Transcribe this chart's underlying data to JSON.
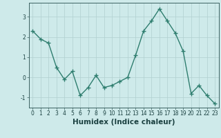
{
  "x": [
    0,
    1,
    2,
    3,
    4,
    5,
    6,
    7,
    8,
    9,
    10,
    11,
    12,
    13,
    14,
    15,
    16,
    17,
    18,
    19,
    20,
    21,
    22,
    23
  ],
  "y": [
    2.3,
    1.9,
    1.7,
    0.5,
    -0.1,
    0.3,
    -0.9,
    -0.5,
    0.1,
    -0.5,
    -0.4,
    -0.2,
    0.0,
    1.1,
    2.3,
    2.8,
    3.4,
    2.8,
    2.2,
    1.3,
    -0.8,
    -0.4,
    -0.9,
    -1.3
  ],
  "line_color": "#2e7d6e",
  "marker": "+",
  "marker_size": 4,
  "marker_linewidth": 1.0,
  "line_width": 1.0,
  "bg_color": "#ceeaea",
  "grid_color": "#b0d0d0",
  "xlabel": "Humidex (Indice chaleur)",
  "xlim": [
    -0.5,
    23.5
  ],
  "ylim": [
    -1.5,
    3.7
  ],
  "yticks": [
    -1,
    0,
    1,
    2,
    3
  ],
  "xticks": [
    0,
    1,
    2,
    3,
    4,
    5,
    6,
    7,
    8,
    9,
    10,
    11,
    12,
    13,
    14,
    15,
    16,
    17,
    18,
    19,
    20,
    21,
    22,
    23
  ],
  "tick_fontsize": 5.5,
  "xlabel_fontsize": 7.5,
  "spine_color": "#3a6060",
  "tick_color": "#1a4040"
}
